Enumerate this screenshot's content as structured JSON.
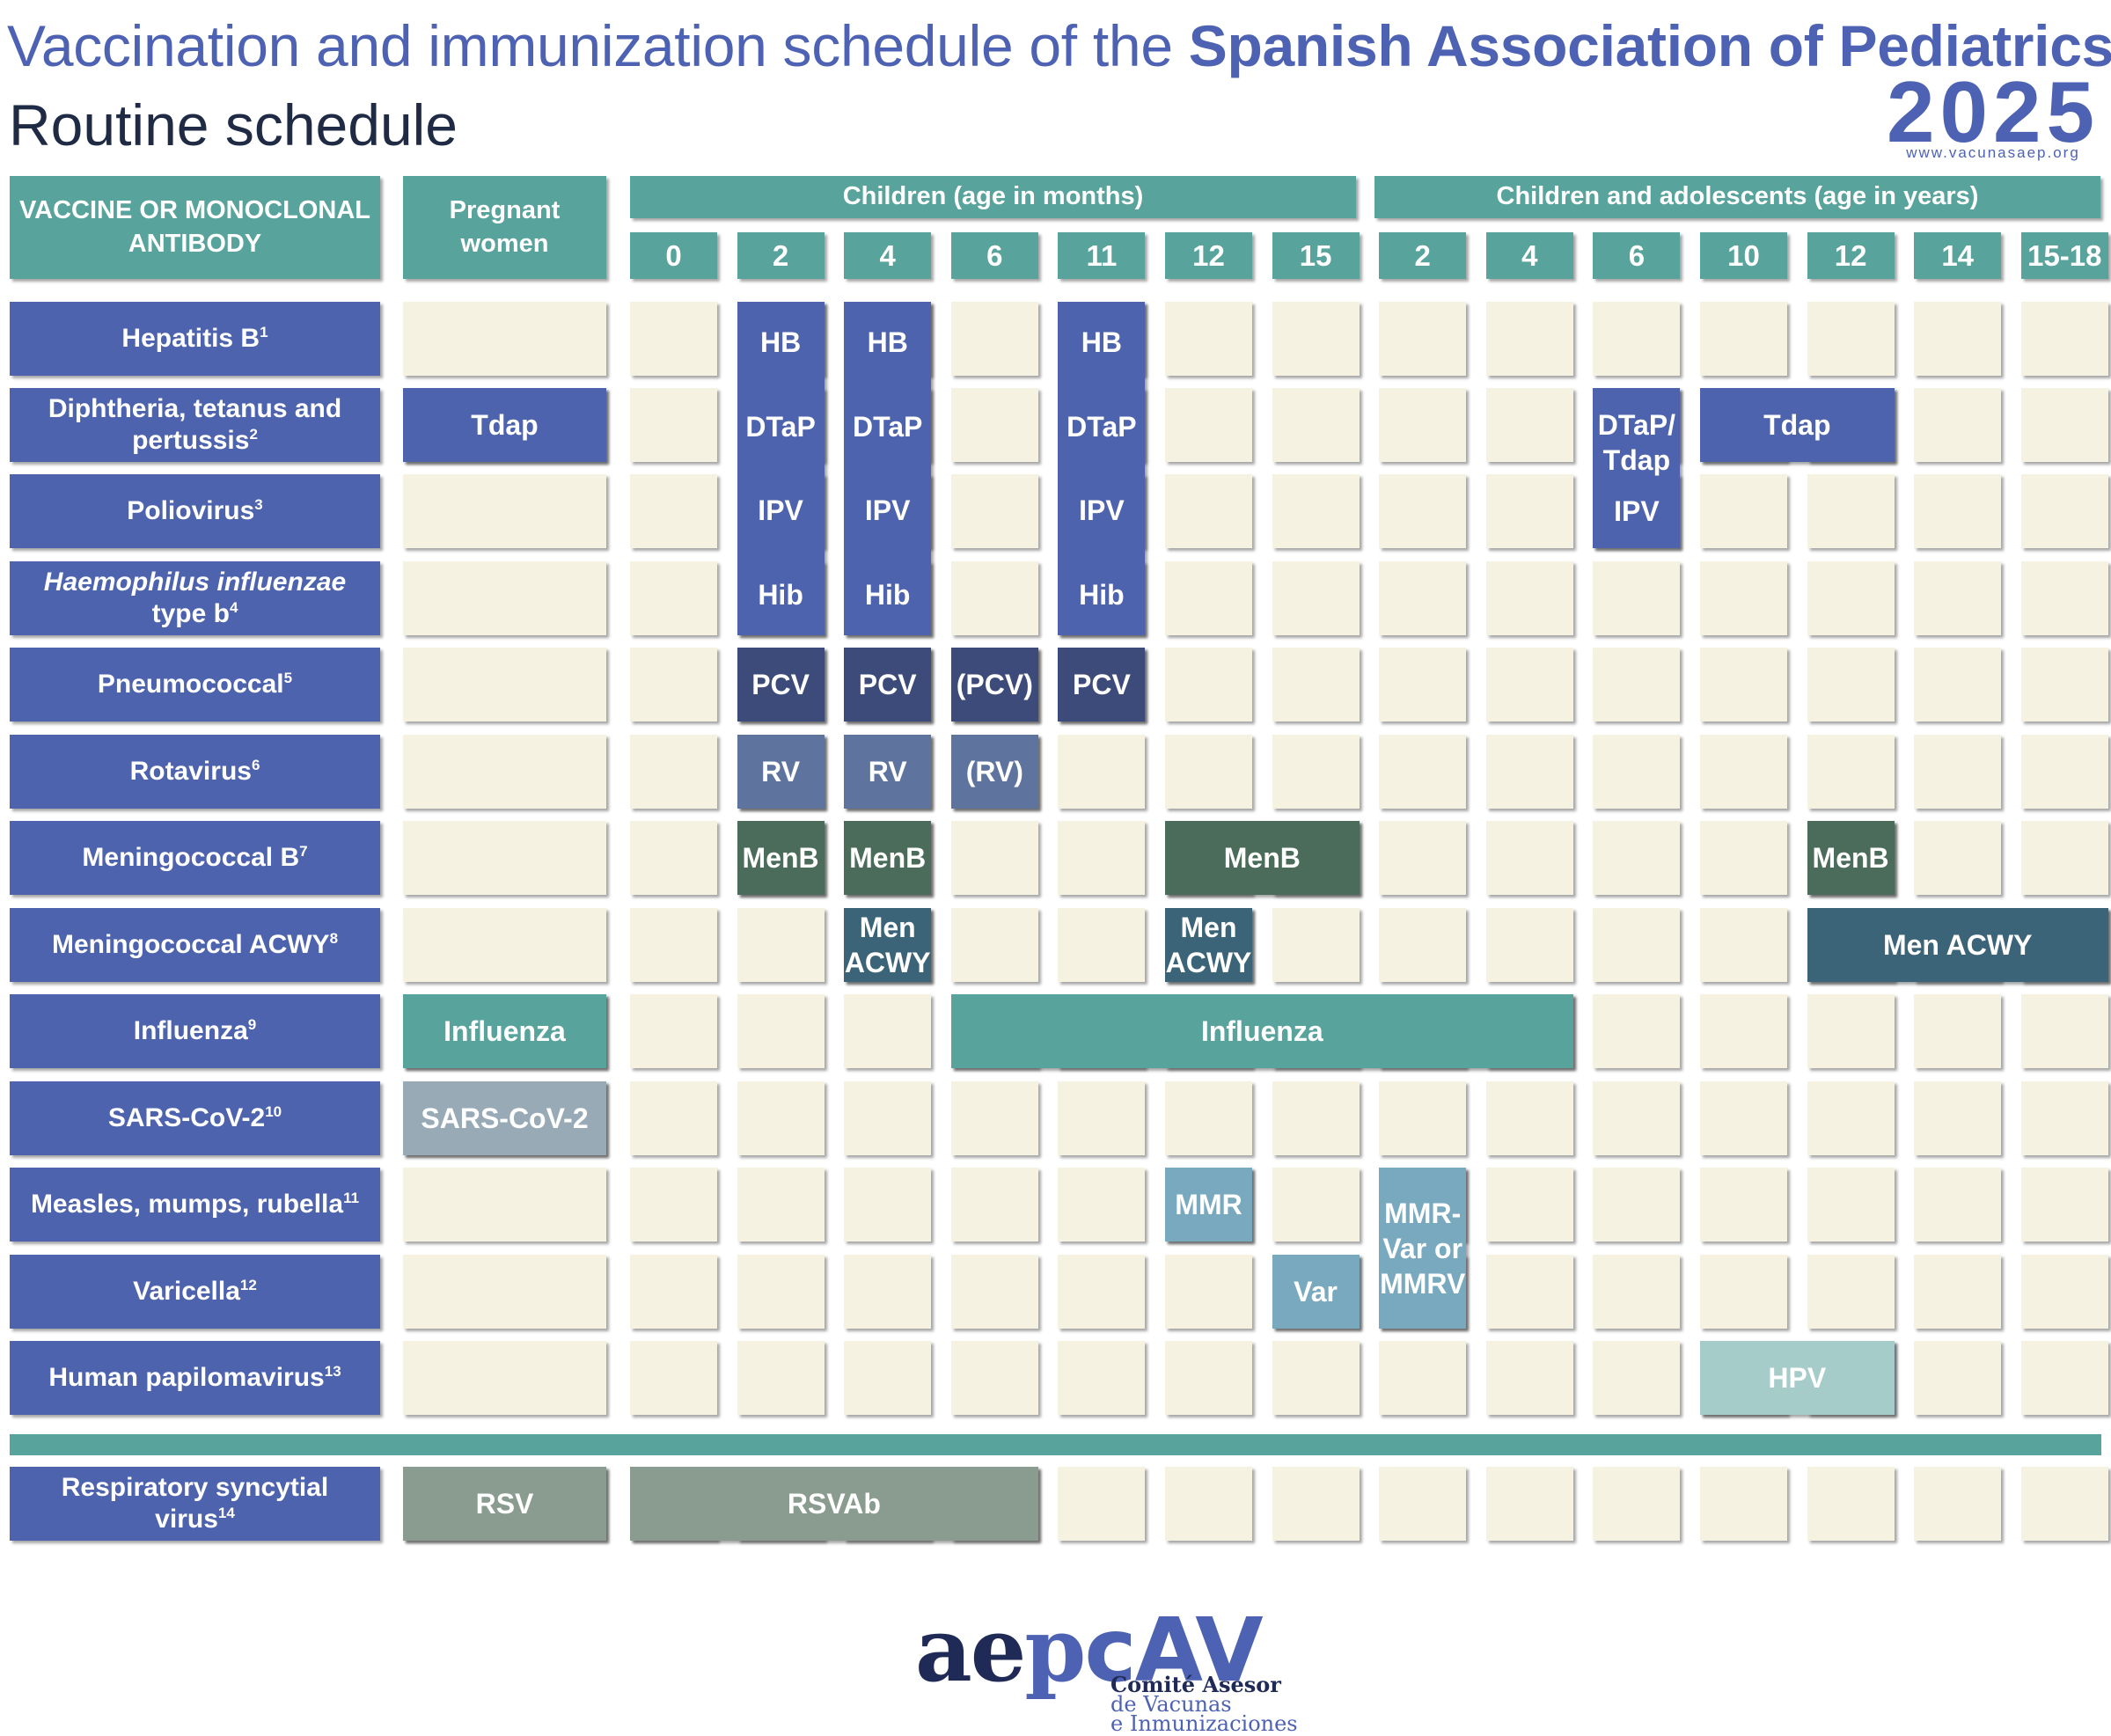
{
  "header": {
    "title_prefix": "Vaccination and immunization schedule of the ",
    "title_org": "Spanish Association of Pediatrics",
    "subtitle": "Routine schedule",
    "year": "2025",
    "url": "www.vacunasaep.org"
  },
  "columns": {
    "vaccine_header": "VACCINE OR MONOCLONAL ANTIBODY",
    "pregnant_header": "Pregnant women",
    "months_group": "Children (age in months)",
    "years_group": "Children and adolescents (age in years)",
    "ages": [
      "0",
      "2",
      "4",
      "6",
      "11",
      "12",
      "15",
      "2",
      "4",
      "6",
      "10",
      "12",
      "14",
      "15-18"
    ]
  },
  "rows": [
    {
      "label": "Hepatitis B",
      "note": "1"
    },
    {
      "label": "Diphtheria, tetanus and pertussis",
      "note": "2"
    },
    {
      "label": "Poliovirus",
      "note": "3"
    },
    {
      "label": "Haemophilus influenzae type b",
      "note": "4"
    },
    {
      "label": "Pneumococcal",
      "note": "5"
    },
    {
      "label": "Rotavirus",
      "note": "6"
    },
    {
      "label": "Meningococcal B",
      "note": "7"
    },
    {
      "label": "Meningococcal ACWY",
      "note": "8"
    },
    {
      "label": "Influenza",
      "note": "9"
    },
    {
      "label": "SARS-CoV-2",
      "note": "10"
    },
    {
      "label": "Measles, mumps, rubella",
      "note": "11"
    },
    {
      "label": "Varicella",
      "note": "12"
    },
    {
      "label": "Human papilomavirus",
      "note": "13"
    },
    {
      "label": "Respiratory syncytial virus",
      "note": "14"
    }
  ],
  "vaccines": {
    "hb": "HB",
    "dtap": "DTaP",
    "ipv": "IPV",
    "hib": "Hib",
    "tdap_preg": "Tdap",
    "dtap_tdap": "DTaP/ Tdap",
    "tdap": "Tdap",
    "ipv_6y": "IPV",
    "pcv": "PCV",
    "pcv_opt": "(PCV)",
    "rv": "RV",
    "rv_opt": "(RV)",
    "menb": "MenB",
    "men_acwy_short": "Men ACWY",
    "men_acwy": "Men ACWY",
    "influenza": "Influenza",
    "sarscov2": "SARS-CoV-2",
    "mmr": "MMR",
    "mmrv": "MMR- Var or MMRV",
    "var": "Var",
    "hpv": "HPV",
    "rsv": "RSV",
    "rsvab": "RSVAb"
  },
  "logo": {
    "name": "aepcAV",
    "line1": "Comité Asesor",
    "line2": "de Vacunas",
    "line3": "e Inmunizaciones"
  }
}
